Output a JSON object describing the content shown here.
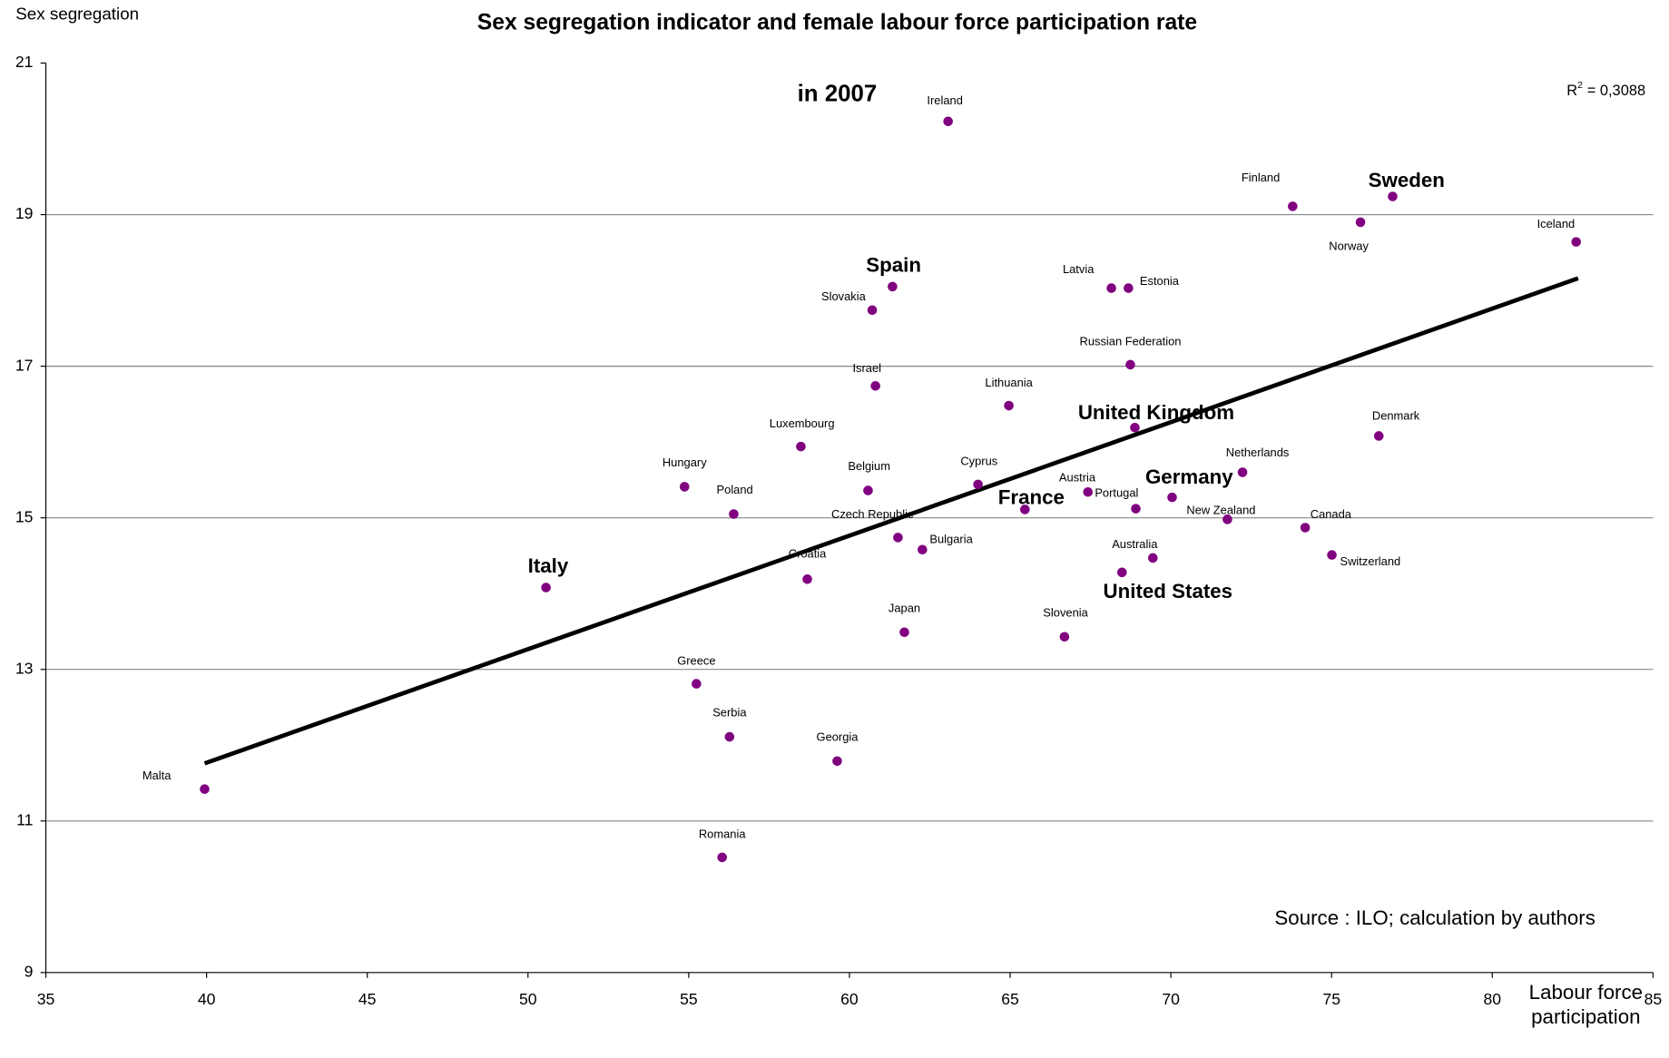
{
  "chart_data": {
    "type": "scatter",
    "title": "Sex segregation indicator and female labour force participation rate",
    "subtitle": "in 2007",
    "xlabel": "Labour force participation",
    "ylabel": "Sex segregation",
    "source": "Source : ILO; calculation by authors",
    "r2": {
      "symbol": "R",
      "power": "2",
      "text": "= 0,3088"
    },
    "xlim": [
      35,
      85
    ],
    "ylim": [
      9,
      21
    ],
    "xticks": [
      35,
      40,
      45,
      50,
      55,
      60,
      65,
      70,
      75,
      80,
      85
    ],
    "yticks": [
      9,
      11,
      13,
      15,
      17,
      19,
      21
    ],
    "grid": true,
    "color": "#800080",
    "trendline": {
      "x": [
        39.94,
        82.67
      ],
      "y": [
        11.76,
        18.16
      ],
      "color": "#000000"
    },
    "series": [
      {
        "names": [
          "Ireland",
          "Finland",
          "Sweden",
          "Norway",
          "Iceland",
          "Spain",
          "Slovakia",
          "Latvia",
          "Estonia",
          "Russian Federation",
          "Israel",
          "Lithuania",
          "United Kingdom",
          "Denmark",
          "Luxembourg",
          "Netherlands",
          "Hungary",
          "Belgium",
          "Cyprus",
          "Austria",
          "Germany",
          "Portugal",
          "France",
          "Poland",
          "New Zealand",
          "Canada",
          "Czech Republic",
          "Bulgaria",
          "Switzerland",
          "Australia",
          "United States",
          "Croatia",
          "Italy",
          "Japan",
          "Slovenia",
          "Greece",
          "Serbia",
          "Georgia",
          "Malta",
          "Romania"
        ],
        "x": [
          63.07,
          73.79,
          76.9,
          75.9,
          82.61,
          61.34,
          60.71,
          68.15,
          68.68,
          68.74,
          60.81,
          64.96,
          68.88,
          76.47,
          58.49,
          72.23,
          54.87,
          60.58,
          64.0,
          67.42,
          70.04,
          68.91,
          65.46,
          56.4,
          71.76,
          74.18,
          61.51,
          62.27,
          75.01,
          69.44,
          68.48,
          58.69,
          50.56,
          61.71,
          66.69,
          55.24,
          56.27,
          59.62,
          39.94,
          56.04
        ],
        "values": [
          20.23,
          19.11,
          19.24,
          18.9,
          18.64,
          18.05,
          17.74,
          18.03,
          18.03,
          17.02,
          16.74,
          16.48,
          16.19,
          16.08,
          15.94,
          15.6,
          15.41,
          15.36,
          15.44,
          15.34,
          15.27,
          15.12,
          15.11,
          15.05,
          14.98,
          14.87,
          14.74,
          14.58,
          14.51,
          14.47,
          14.28,
          14.19,
          14.08,
          13.49,
          13.43,
          12.81,
          12.11,
          11.79,
          11.42,
          10.52
        ],
        "highlighted": [
          false,
          false,
          true,
          false,
          false,
          true,
          false,
          false,
          false,
          false,
          false,
          false,
          true,
          false,
          false,
          false,
          false,
          false,
          false,
          false,
          true,
          false,
          true,
          false,
          false,
          false,
          false,
          false,
          false,
          false,
          true,
          false,
          true,
          false,
          false,
          false,
          false,
          false,
          false,
          false
        ]
      }
    ]
  }
}
